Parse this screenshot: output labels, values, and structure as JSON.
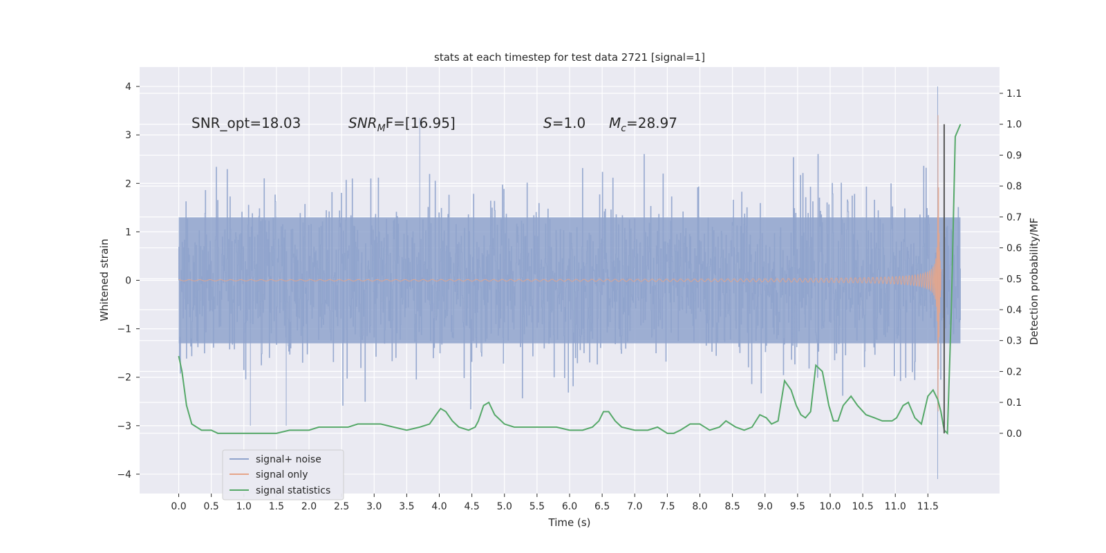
{
  "chart_data": {
    "type": "line",
    "title": "stats at each timestep for test data 2721 [signal=1]",
    "xlabel": "Time (s)",
    "ylabel": "Whitened strain",
    "ylabel_right": "Detection probability/MF",
    "xlim": [
      -0.6,
      12.6
    ],
    "ylim": [
      -4.4,
      4.4
    ],
    "ylim_right": [
      -0.195,
      1.185
    ],
    "x_ticks": [
      0.0,
      0.5,
      1.0,
      1.5,
      2.0,
      2.5,
      3.0,
      3.5,
      4.0,
      4.5,
      5.0,
      5.5,
      6.0,
      6.5,
      7.0,
      7.5,
      8.0,
      8.5,
      9.0,
      9.5,
      10.0,
      10.5,
      11.0,
      11.5
    ],
    "x_tick_labels": [
      "0.0",
      "0.5",
      "1.0",
      "1.5",
      "2.0",
      "2.5",
      "3.0",
      "3.5",
      "4.0",
      "4.5",
      "5.0",
      "5.5",
      "6.0",
      "6.5",
      "7.0",
      "7.5",
      "8.0",
      "8.5",
      "9.0",
      "9.5",
      "10.0",
      "10.5",
      "11.0",
      "11.5"
    ],
    "y_ticks": [
      -4,
      -3,
      -2,
      -1,
      0,
      1,
      2,
      3,
      4
    ],
    "y_tick_labels": [
      "−4",
      "−3",
      "−2",
      "−1",
      "0",
      "1",
      "2",
      "3",
      "4"
    ],
    "y_right_ticks": [
      0.0,
      0.1,
      0.2,
      0.3,
      0.4,
      0.5,
      0.6,
      0.7,
      0.8,
      0.9,
      1.0,
      1.1
    ],
    "y_right_tick_labels": [
      "0.0",
      "0.1",
      "0.2",
      "0.3",
      "0.4",
      "0.5",
      "0.6",
      "0.7",
      "0.8",
      "0.9",
      "1.0",
      "1.1"
    ],
    "grid": true,
    "legend_position": "lower-left",
    "annotations": {
      "snr_opt": "SNR_opt=18.03",
      "snr_mf_sym": "SNR",
      "snr_mf_sub": "M",
      "snr_mf_rest": "F=[16.95]",
      "s_sym": "S",
      "s_val": "=1.0",
      "mc_sym": "M",
      "mc_sub": "c",
      "mc_val": "=28.97"
    },
    "series": [
      {
        "name": "signal+ noise",
        "color": "#8fa3cc",
        "axis": "left",
        "x_range": [
          0.0,
          12.0
        ],
        "typical_amplitude": [
          -1.3,
          1.3
        ],
        "peaks": [
          {
            "x": 3.7,
            "y": 3.35
          },
          {
            "x": 11.65,
            "y": 4.0
          },
          {
            "x": 11.65,
            "y": -4.1
          },
          {
            "x": 1.1,
            "y": -3.0
          },
          {
            "x": 1.65,
            "y": -3.0
          }
        ]
      },
      {
        "name": "signal only",
        "color": "#e6a589",
        "axis": "left",
        "x_range": [
          0.0,
          11.7
        ],
        "peak_x": 11.65,
        "peak_amplitude": 3.5
      },
      {
        "name": "signal statistics",
        "color": "#55a868",
        "axis": "right",
        "x": [
          0.0,
          0.05,
          0.12,
          0.2,
          0.35,
          0.5,
          0.6,
          0.75,
          0.9,
          1.1,
          1.3,
          1.5,
          1.7,
          1.85,
          2.0,
          2.15,
          2.3,
          2.5,
          2.6,
          2.75,
          2.9,
          3.0,
          3.1,
          3.3,
          3.5,
          3.7,
          3.85,
          3.95,
          4.02,
          4.1,
          4.2,
          4.3,
          4.45,
          4.55,
          4.6,
          4.68,
          4.76,
          4.85,
          5.0,
          5.15,
          5.3,
          5.45,
          5.6,
          5.8,
          6.0,
          6.2,
          6.35,
          6.45,
          6.52,
          6.6,
          6.7,
          6.8,
          7.0,
          7.2,
          7.35,
          7.5,
          7.6,
          7.7,
          7.85,
          8.0,
          8.15,
          8.3,
          8.4,
          8.55,
          8.68,
          8.8,
          8.92,
          9.02,
          9.1,
          9.2,
          9.3,
          9.4,
          9.48,
          9.55,
          9.62,
          9.7,
          9.78,
          9.88,
          9.98,
          10.05,
          10.12,
          10.2,
          10.32,
          10.42,
          10.55,
          10.68,
          10.8,
          10.95,
          11.02,
          11.12,
          11.2,
          11.3,
          11.4,
          11.5,
          11.58,
          11.65,
          11.7,
          11.75,
          11.8,
          11.86,
          11.92,
          12.0
        ],
        "y": [
          0.25,
          0.2,
          0.09,
          0.03,
          0.01,
          0.01,
          0.0,
          0.0,
          0.0,
          0.0,
          0.0,
          0.0,
          0.01,
          0.01,
          0.01,
          0.02,
          0.02,
          0.02,
          0.02,
          0.03,
          0.03,
          0.03,
          0.03,
          0.02,
          0.01,
          0.02,
          0.03,
          0.06,
          0.08,
          0.07,
          0.04,
          0.02,
          0.01,
          0.02,
          0.04,
          0.09,
          0.1,
          0.06,
          0.03,
          0.02,
          0.02,
          0.02,
          0.02,
          0.02,
          0.01,
          0.01,
          0.02,
          0.04,
          0.07,
          0.07,
          0.04,
          0.02,
          0.01,
          0.01,
          0.02,
          0.0,
          0.0,
          0.01,
          0.03,
          0.03,
          0.01,
          0.02,
          0.04,
          0.02,
          0.01,
          0.02,
          0.06,
          0.05,
          0.03,
          0.04,
          0.17,
          0.14,
          0.09,
          0.06,
          0.05,
          0.07,
          0.22,
          0.2,
          0.09,
          0.04,
          0.04,
          0.09,
          0.12,
          0.09,
          0.06,
          0.05,
          0.04,
          0.04,
          0.05,
          0.09,
          0.1,
          0.05,
          0.03,
          0.12,
          0.14,
          0.11,
          0.07,
          0.01,
          0.0,
          0.4,
          0.96,
          1.0
        ]
      }
    ],
    "extra_lines": [
      {
        "x": 11.75,
        "y_right": [
          0.0,
          1.0
        ],
        "color": "#555555"
      }
    ]
  }
}
